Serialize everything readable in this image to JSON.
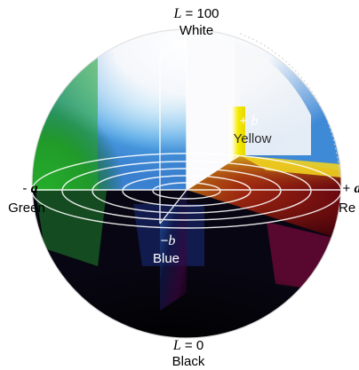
{
  "labels": {
    "white_l": "L",
    "white_eq": " = 100",
    "white": "White",
    "black_l": "L",
    "black_eq": " = 0",
    "black": "Black",
    "plus_b_sign": "+ ",
    "plus_b_var": "b",
    "yellow": "Yellow",
    "minus_b_sign": "−",
    "minus_b_var": "b",
    "blue": "Blue",
    "minus_a_sign": "- ",
    "minus_a_var": "a",
    "green": "Green",
    "plus_a_sign": "+ ",
    "plus_a_var": "a",
    "red": "Re"
  },
  "colors": {
    "white": "#ffffff",
    "yellow": "#f2e600",
    "red": "#7a0010",
    "green": "#2bb52a",
    "blue": "#1f72c8",
    "cyan": "#6fd0ee",
    "black": "#000000",
    "magenta": "#8a0a6a"
  }
}
